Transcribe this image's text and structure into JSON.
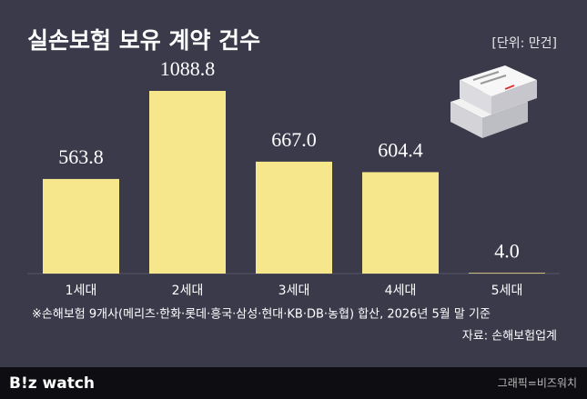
{
  "chart_data": {
    "type": "bar",
    "title": "실손보험 보유 계약 건수",
    "unit": "[단위: 만건]",
    "categories": [
      "1세대",
      "2세대",
      "3세대",
      "4세대",
      "5세대"
    ],
    "values": [
      563.8,
      1088.8,
      667.0,
      604.4,
      4.0
    ],
    "value_labels": [
      "563.8",
      "1088.8",
      "667.0",
      "604.4",
      "4.0"
    ],
    "color": "#f6e68c",
    "note": "※손해보험 9개사(메리츠·한화·롯데·흥국·삼성·현대·KB·DB·농협) 합산, 2026년 5월 말 기준",
    "source": "자료: 손해보험업계"
  },
  "footer": {
    "logo": "B!z watch",
    "credit": "그래픽=비즈워치"
  }
}
